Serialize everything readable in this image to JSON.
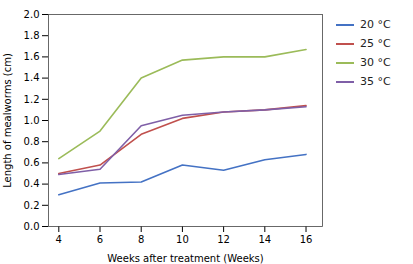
{
  "chart_data": {
    "type": "line",
    "xlabel": "Weeks after treatment (Weeks)",
    "ylabel": "Length of mealworms (cm)",
    "x": [
      4,
      6,
      8,
      10,
      12,
      14,
      16
    ],
    "series": [
      {
        "name": "20 °C",
        "color": "#4472C4",
        "values": [
          0.3,
          0.41,
          0.42,
          0.58,
          0.53,
          0.63,
          0.68
        ]
      },
      {
        "name": "25 °C",
        "color": "#C0504D",
        "values": [
          0.5,
          0.58,
          0.87,
          1.02,
          1.08,
          1.1,
          1.14
        ]
      },
      {
        "name": "30 °C",
        "color": "#9BBB59",
        "values": [
          0.64,
          0.9,
          1.4,
          1.57,
          1.6,
          1.6,
          1.67
        ]
      },
      {
        "name": "35 °C",
        "color": "#7F5FA7",
        "values": [
          0.49,
          0.54,
          0.95,
          1.05,
          1.08,
          1.1,
          1.13
        ]
      }
    ],
    "xlim": [
      3.5,
      16.8
    ],
    "ylim": [
      0,
      2.0
    ],
    "xticks": [
      4,
      6,
      8,
      10,
      12,
      14,
      16
    ],
    "yticks": [
      {
        "value": 0,
        "label": "0.0"
      },
      0.2,
      0.4,
      0.6,
      0.8,
      {
        "value": 1.0,
        "label": "1.0"
      },
      1.2,
      1.4,
      1.6,
      1.8,
      {
        "value": 2.0,
        "label": "2.0"
      }
    ],
    "legend": "right"
  }
}
